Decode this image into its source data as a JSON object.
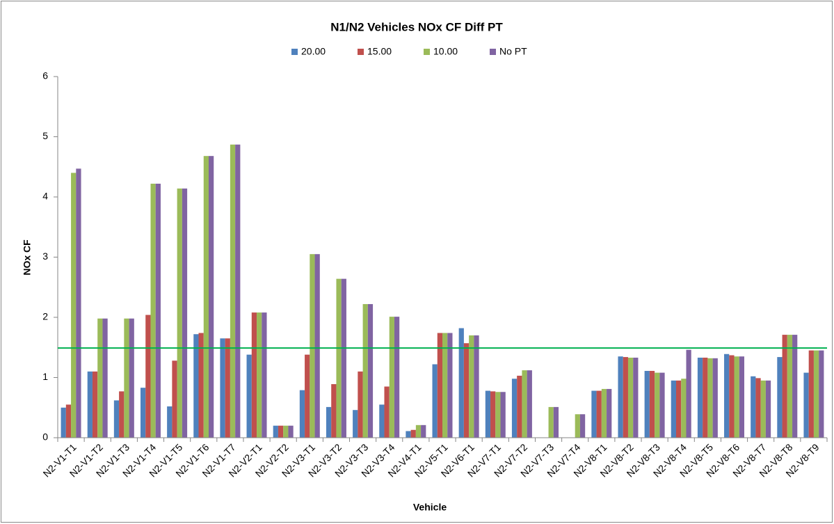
{
  "chart_data": {
    "type": "bar",
    "title": "N1/N2 Vehicles NOx CF Diff PT",
    "x_label": "Vehicle",
    "y_label": "NOx CF",
    "categories": [
      "N2-V1-T1",
      "N2-V1-T2",
      "N2-V1-T3",
      "N2-V1-T4",
      "N2-V1-T5",
      "N2-V1-T6",
      "N2-V1-T7",
      "N2-V2-T1",
      "N2-V2-T2",
      "N2-V3-T1",
      "N2-V3-T2",
      "N2-V3-T3",
      "N2-V3-T4",
      "N2-V4-T1",
      "N2-V5-T1",
      "N2-V6-T1",
      "N2-V7-T1",
      "N2-V7-T2",
      "N2-V7-T3",
      "N2-V7-T4",
      "N2-V8-T1",
      "N2-V8-T2",
      "N2-V8-T3",
      "N2-V8-T4",
      "N2-V8-T5",
      "N2-V8-T6",
      "N2-V8-T7",
      "N2-V8-T8",
      "N2-V8-T9"
    ],
    "series": [
      {
        "name": "20.00",
        "color": "#4f81bd",
        "values": [
          0.5,
          1.1,
          0.62,
          0.83,
          0.52,
          1.72,
          1.65,
          1.38,
          0.2,
          0.79,
          0.51,
          0.46,
          0.55,
          0.11,
          1.22,
          1.82,
          0.78,
          0.98,
          null,
          null,
          0.78,
          1.35,
          1.11,
          0.95,
          1.33,
          1.39,
          1.02,
          1.34,
          1.08
        ]
      },
      {
        "name": "15.00",
        "color": "#c0504d",
        "values": [
          0.55,
          1.1,
          0.77,
          2.04,
          1.28,
          1.74,
          1.65,
          2.08,
          0.2,
          1.38,
          0.89,
          1.1,
          0.85,
          0.13,
          1.74,
          1.57,
          0.77,
          1.03,
          null,
          null,
          0.78,
          1.34,
          1.11,
          0.95,
          1.33,
          1.37,
          0.99,
          1.71,
          1.45
        ]
      },
      {
        "name": "10.00",
        "color": "#9bbb59",
        "values": [
          4.4,
          1.98,
          1.98,
          4.22,
          4.14,
          4.68,
          4.87,
          2.08,
          0.2,
          3.05,
          2.64,
          2.22,
          2.01,
          0.21,
          1.74,
          1.7,
          0.76,
          1.12,
          0.51,
          0.39,
          0.81,
          1.33,
          1.08,
          0.98,
          1.32,
          1.35,
          0.95,
          1.71,
          1.45
        ]
      },
      {
        "name": "No PT",
        "color": "#8064a2",
        "values": [
          4.47,
          1.98,
          1.98,
          4.22,
          4.14,
          4.68,
          4.87,
          2.08,
          0.2,
          3.05,
          2.64,
          2.22,
          2.01,
          0.21,
          1.74,
          1.7,
          0.76,
          1.12,
          0.51,
          0.39,
          0.81,
          1.33,
          1.08,
          1.46,
          1.32,
          1.35,
          0.95,
          1.71,
          1.45
        ]
      }
    ],
    "reference_line": {
      "value": 1.49,
      "color": "#00b050"
    },
    "ylim": [
      0,
      6
    ],
    "yticks": [
      0,
      1,
      2,
      3,
      4,
      5,
      6
    ],
    "grid": false,
    "legend": "top"
  }
}
